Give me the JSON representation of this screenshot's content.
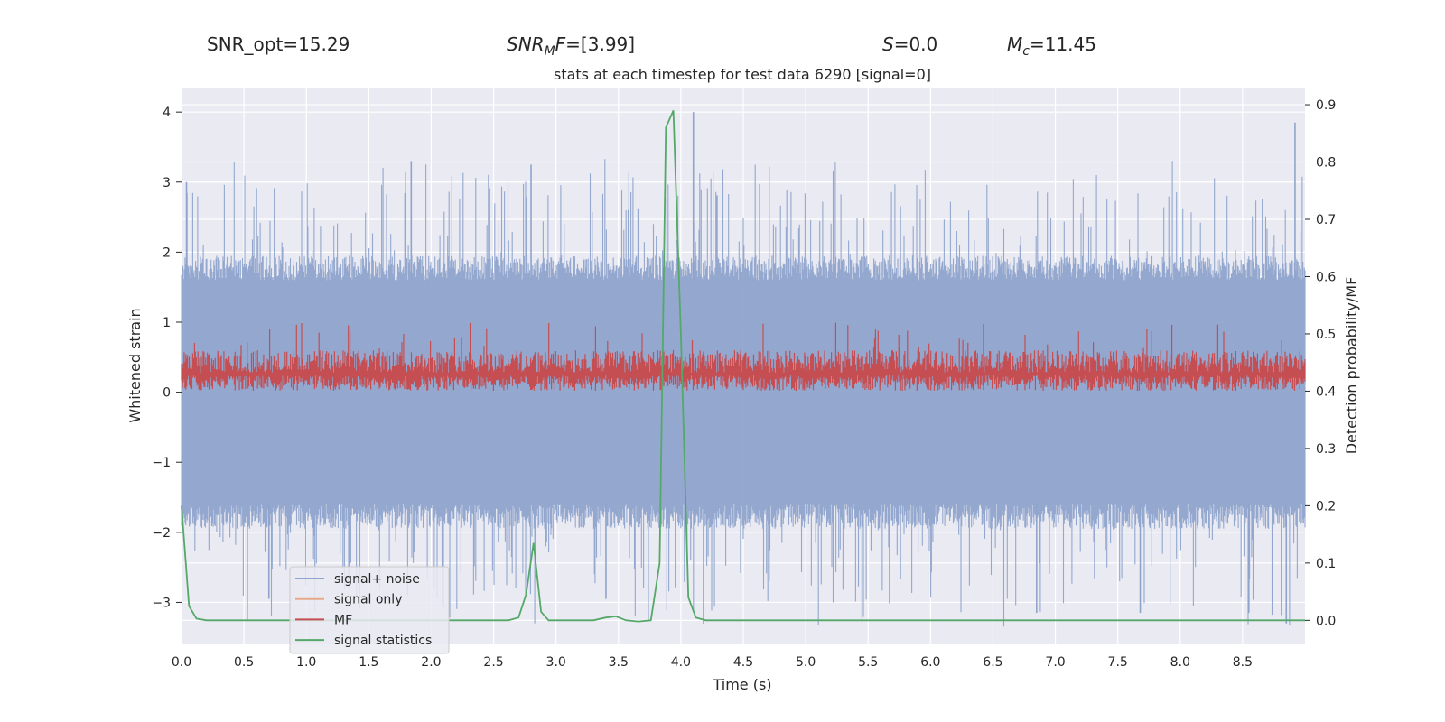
{
  "chart_data": {
    "type": "line",
    "header": {
      "snr_opt": "SNR_opt=15.29",
      "snr_mf_base": "SNR",
      "snr_mf_sub": "M",
      "snr_mf_tail": "F",
      "snr_mf_value": "=[3.99]",
      "s_sym": "S",
      "s_value": "=0.0",
      "mc_sym": "M",
      "mc_sub": "c",
      "mc_value": "=11.45"
    },
    "title": "stats at each timestep for test data 6290 [signal=0]",
    "xlabel": "Time (s)",
    "ylabel": "Whitened strain",
    "y2label": "Detection probability/MF",
    "xlim": [
      0,
      9.0
    ],
    "ylim": [
      -3.6,
      4.35
    ],
    "y2lim": [
      -0.042,
      0.93
    ],
    "xticks": [
      "0.0",
      "0.5",
      "1.0",
      "1.5",
      "2.0",
      "2.5",
      "3.0",
      "3.5",
      "4.0",
      "4.5",
      "5.0",
      "5.5",
      "6.0",
      "6.5",
      "7.0",
      "7.5",
      "8.0",
      "8.5"
    ],
    "yticks": [
      "4",
      "3",
      "2",
      "1",
      "0",
      "−1",
      "−2",
      "−3"
    ],
    "y2ticks": [
      "0.9",
      "0.8",
      "0.7",
      "0.6",
      "0.5",
      "0.4",
      "0.3",
      "0.2",
      "0.1",
      "0.0"
    ],
    "colors": {
      "noise": "#8fa4cc",
      "signal": "#e8a98a",
      "mf": "#c44e52",
      "stat": "#55a868",
      "bg": "#eaeaf2",
      "grid": "#ffffff"
    },
    "series": [
      {
        "name": "signal+ noise",
        "kind": "noise",
        "envelope": {
          "upper_mean": 1.6,
          "upper_peak": 3.0,
          "lower_mean": -1.6,
          "lower_peak": -3.1,
          "peaks": [
            [
              0.04,
              3.0
            ],
            [
              1.84,
              3.3
            ],
            [
              2.8,
              3.25
            ],
            [
              4.1,
              4.0
            ],
            [
              8.92,
              3.85
            ],
            [
              0.7,
              -2.95
            ],
            [
              3.4,
              -2.95
            ],
            [
              6.85,
              -3.15
            ],
            [
              7.68,
              -3.15
            ],
            [
              8.55,
              -3.15
            ],
            [
              8.85,
              -3.3
            ]
          ]
        }
      },
      {
        "name": "signal only",
        "kind": "signal",
        "values": []
      },
      {
        "name": "MF",
        "kind": "mf",
        "band_low": 0.02,
        "band_high": 0.58,
        "peak": 1.0
      },
      {
        "name": "signal statistics",
        "kind": "stat",
        "x": [
          0.0,
          0.06,
          0.12,
          0.2,
          0.5,
          1.0,
          1.5,
          2.0,
          2.5,
          2.62,
          2.7,
          2.76,
          2.82,
          2.88,
          2.94,
          3.0,
          3.1,
          3.3,
          3.4,
          3.48,
          3.56,
          3.66,
          3.76,
          3.83,
          3.88,
          3.94,
          4.0,
          4.06,
          4.12,
          4.2,
          4.5,
          5.0,
          6.0,
          7.0,
          8.0,
          9.0
        ],
        "y": [
          0.2,
          0.025,
          0.003,
          0.0,
          0.0,
          0.0,
          0.0,
          0.0,
          0.0,
          0.0,
          0.005,
          0.045,
          0.135,
          0.015,
          0.0,
          0.0,
          0.0,
          0.0,
          0.005,
          0.007,
          0.0,
          -0.002,
          0.0,
          0.1,
          0.86,
          0.89,
          0.5,
          0.04,
          0.005,
          0.0,
          0.0,
          0.0,
          0.0,
          0.0,
          0.0,
          0.0
        ]
      }
    ],
    "legend_position": "lower-left"
  }
}
